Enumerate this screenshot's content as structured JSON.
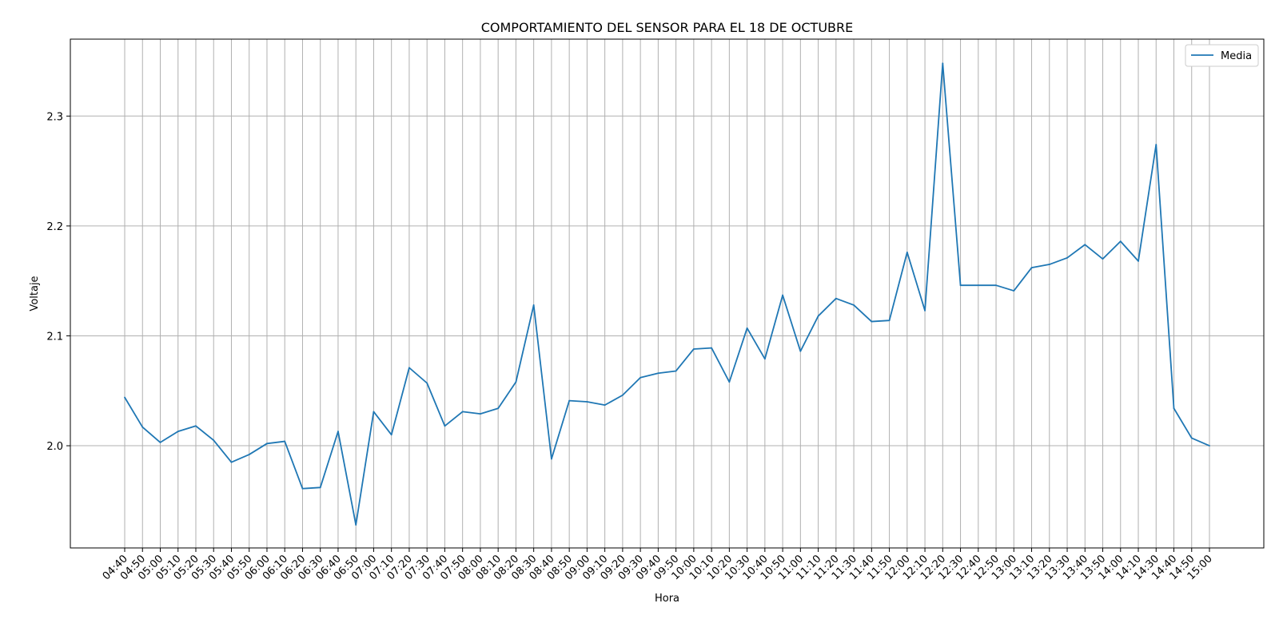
{
  "chart_data": {
    "type": "line",
    "title": "COMPORTAMIENTO DEL SENSOR PARA EL 18 DE OCTUBRE",
    "xlabel": "Hora",
    "ylabel": "Voltaje",
    "categories": [
      "04:40",
      "04:50",
      "05:00",
      "05:10",
      "05:20",
      "05:30",
      "05:40",
      "05:50",
      "06:00",
      "06:10",
      "06:20",
      "06:30",
      "06:40",
      "06:50",
      "07:00",
      "07:10",
      "07:20",
      "07:30",
      "07:40",
      "07:50",
      "08:00",
      "08:10",
      "08:20",
      "08:30",
      "08:40",
      "08:50",
      "09:00",
      "09:10",
      "09:20",
      "09:30",
      "09:40",
      "09:50",
      "10:00",
      "10:10",
      "10:20",
      "10:30",
      "10:40",
      "10:50",
      "11:00",
      "11:10",
      "11:20",
      "11:30",
      "11:40",
      "11:50",
      "12:00",
      "12:10",
      "12:20",
      "12:30",
      "12:40",
      "12:50",
      "13:00",
      "13:10",
      "13:20",
      "13:30",
      "13:40",
      "13:50",
      "14:00",
      "14:10",
      "14:30",
      "14:40",
      "14:50",
      "15:00"
    ],
    "series": [
      {
        "name": "Media",
        "color": "#1f77b4",
        "values": [
          2.044,
          2.017,
          2.003,
          2.013,
          2.018,
          2.005,
          1.985,
          1.992,
          2.002,
          2.004,
          1.961,
          1.962,
          2.013,
          1.928,
          2.031,
          2.01,
          2.071,
          2.057,
          2.018,
          2.031,
          2.029,
          2.034,
          2.058,
          2.128,
          1.988,
          2.041,
          2.04,
          2.037,
          2.046,
          2.062,
          2.066,
          2.068,
          2.088,
          2.089,
          2.058,
          2.107,
          2.079,
          2.137,
          2.086,
          2.118,
          2.134,
          2.128,
          2.113,
          2.114,
          2.176,
          2.123,
          2.348,
          2.146,
          2.146,
          2.146,
          2.141,
          2.162,
          2.165,
          2.171,
          2.183,
          2.17,
          2.186,
          2.168,
          2.274,
          2.034,
          2.007,
          2.0
        ]
      }
    ],
    "yticks": [
      2.0,
      2.1,
      2.2,
      2.3
    ],
    "ylim": [
      1.907,
      2.37
    ],
    "grid": true,
    "legend_position": "top-right"
  }
}
